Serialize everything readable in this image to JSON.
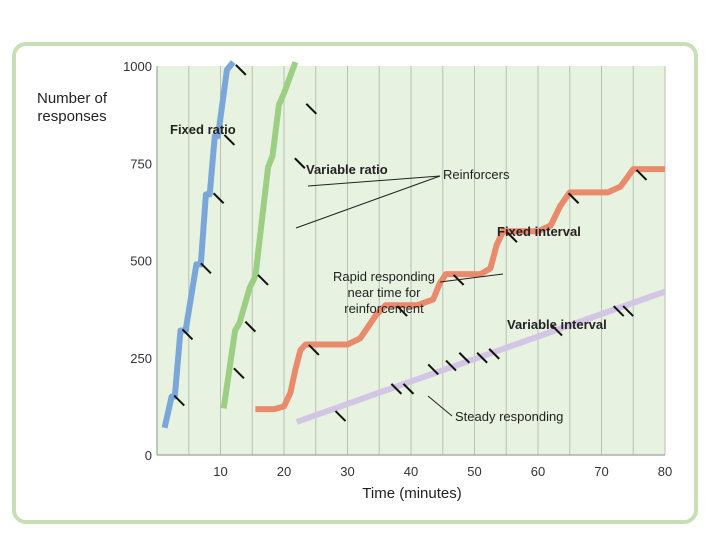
{
  "colors": {
    "frame": "#c8deb4",
    "plot_bg": "#e7f2e0",
    "grid": "#b7c3b2",
    "fixed_ratio": "#7aa7d8",
    "variable_ratio": "#9ccf83",
    "fixed_interval": "#ea8a6d",
    "variable_interval": "#d2c6e4",
    "reinforcer_mark": "#111111"
  },
  "chart_data": {
    "type": "line",
    "title": "",
    "xlabel": "Time (minutes)",
    "ylabel": "Number of responses",
    "ylabel_lines": [
      "Number of",
      "responses"
    ],
    "xlim": [
      0,
      80
    ],
    "ylim": [
      0,
      1000
    ],
    "xticks": [
      10,
      20,
      30,
      40,
      50,
      60,
      70,
      80
    ],
    "yticks": [
      0,
      250,
      500,
      750,
      1000
    ],
    "grid": true,
    "series": [
      {
        "name": "Fixed ratio",
        "color_key": "fixed_ratio",
        "points": [
          [
            1.2,
            70
          ],
          [
            2.3,
            150
          ],
          [
            2.8,
            150
          ],
          [
            3.7,
            320
          ],
          [
            4.5,
            320
          ],
          [
            6.2,
            490
          ],
          [
            6.9,
            490
          ],
          [
            7.7,
            670
          ],
          [
            8.3,
            670
          ],
          [
            9.1,
            820
          ],
          [
            9.6,
            820
          ],
          [
            11.0,
            990
          ],
          [
            12.0,
            1010
          ]
        ],
        "reinforcers": [
          [
            3.5,
            140
          ],
          [
            4.8,
            310
          ],
          [
            7.7,
            480
          ],
          [
            9.7,
            660
          ],
          [
            11.4,
            810
          ],
          [
            13.2,
            990
          ]
        ]
      },
      {
        "name": "Variable ratio",
        "color_key": "variable_ratio",
        "points": [
          [
            10.5,
            120
          ],
          [
            12.3,
            320
          ],
          [
            13.0,
            340
          ],
          [
            14.6,
            430
          ],
          [
            15.5,
            460
          ],
          [
            17.5,
            740
          ],
          [
            18.2,
            770
          ],
          [
            19.2,
            900
          ],
          [
            20.0,
            930
          ],
          [
            21.8,
            1010
          ]
        ],
        "reinforcers": [
          [
            12.9,
            210
          ],
          [
            14.7,
            330
          ],
          [
            16.7,
            450
          ],
          [
            22.5,
            750
          ],
          [
            24.3,
            890
          ]
        ]
      },
      {
        "name": "Fixed interval",
        "color_key": "fixed_interval",
        "points": [
          [
            15.5,
            118
          ],
          [
            18.5,
            118
          ],
          [
            20.0,
            125
          ],
          [
            21.0,
            160
          ],
          [
            21.8,
            220
          ],
          [
            22.6,
            270
          ],
          [
            23.4,
            284
          ],
          [
            30.0,
            284
          ],
          [
            32.0,
            300
          ],
          [
            34.5,
            360
          ],
          [
            36.0,
            385
          ],
          [
            41.0,
            385
          ],
          [
            43.5,
            400
          ],
          [
            44.5,
            440
          ],
          [
            45.5,
            465
          ],
          [
            51.0,
            465
          ],
          [
            52.5,
            480
          ],
          [
            53.5,
            540
          ],
          [
            54.5,
            575
          ],
          [
            60.0,
            575
          ],
          [
            62.0,
            590
          ],
          [
            63.5,
            640
          ],
          [
            65.0,
            675
          ],
          [
            71.0,
            675
          ],
          [
            73.0,
            690
          ],
          [
            75.0,
            735
          ],
          [
            80.0,
            735
          ]
        ],
        "reinforcers": [
          [
            24.7,
            270
          ],
          [
            38.6,
            370
          ],
          [
            47.5,
            450
          ],
          [
            55.9,
            560
          ],
          [
            65.6,
            660
          ],
          [
            76.3,
            720
          ]
        ]
      },
      {
        "name": "Variable interval",
        "color_key": "variable_interval",
        "points": [
          [
            22.0,
            85
          ],
          [
            80.0,
            420
          ]
        ],
        "reinforcers": [
          [
            28.9,
            100
          ],
          [
            37.7,
            170
          ],
          [
            39.6,
            170
          ],
          [
            43.5,
            220
          ],
          [
            46.3,
            230
          ],
          [
            48.4,
            250
          ],
          [
            51.2,
            250
          ],
          [
            53.1,
            260
          ],
          [
            63.0,
            320
          ],
          [
            72.7,
            370
          ],
          [
            74.2,
            370
          ]
        ]
      }
    ],
    "series_labels": [
      "Fixed ratio",
      "Variable ratio",
      "Fixed interval",
      "Variable interval"
    ],
    "annotations": {
      "reinforcers": "Reinforcers",
      "rapid_responding": [
        "Rapid responding",
        "near time for",
        "reinforcement"
      ],
      "steady_responding": "Steady responding"
    }
  }
}
